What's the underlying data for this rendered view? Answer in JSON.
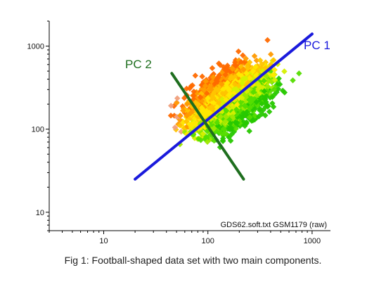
{
  "chart_data": {
    "type": "scatter",
    "x_scale": "log",
    "y_scale": "log",
    "xlim": [
      3,
      1500
    ],
    "ylim": [
      6,
      2000
    ],
    "x_ticks": [
      {
        "value": 10,
        "label": "10"
      },
      {
        "value": 100,
        "label": "100"
      },
      {
        "value": 1000,
        "label": "1000"
      }
    ],
    "y_ticks": [
      {
        "value": 10,
        "label": "10"
      },
      {
        "value": 100,
        "label": "100"
      },
      {
        "value": 1000,
        "label": "1000"
      }
    ],
    "annotation": "GDS62.soft.txt GSM1179 (raw)",
    "components": [
      {
        "label": "PC 1",
        "color": "#1a1adc",
        "x": [
          20,
          1000
        ],
        "y": [
          25,
          1400
        ]
      },
      {
        "label": "PC 2",
        "color": "#1e6e1e",
        "x": [
          45,
          220
        ],
        "y": [
          470,
          25
        ]
      }
    ],
    "point_colors": [
      "#ff6a00",
      "#ff9a00",
      "#ffc400",
      "#ffe800",
      "#d6f000",
      "#9ee800",
      "#55dd00",
      "#27c800",
      "#f0a07c",
      "#f6e0a0"
    ]
  },
  "caption": "Fig 1: Football-shaped data set with two main components."
}
